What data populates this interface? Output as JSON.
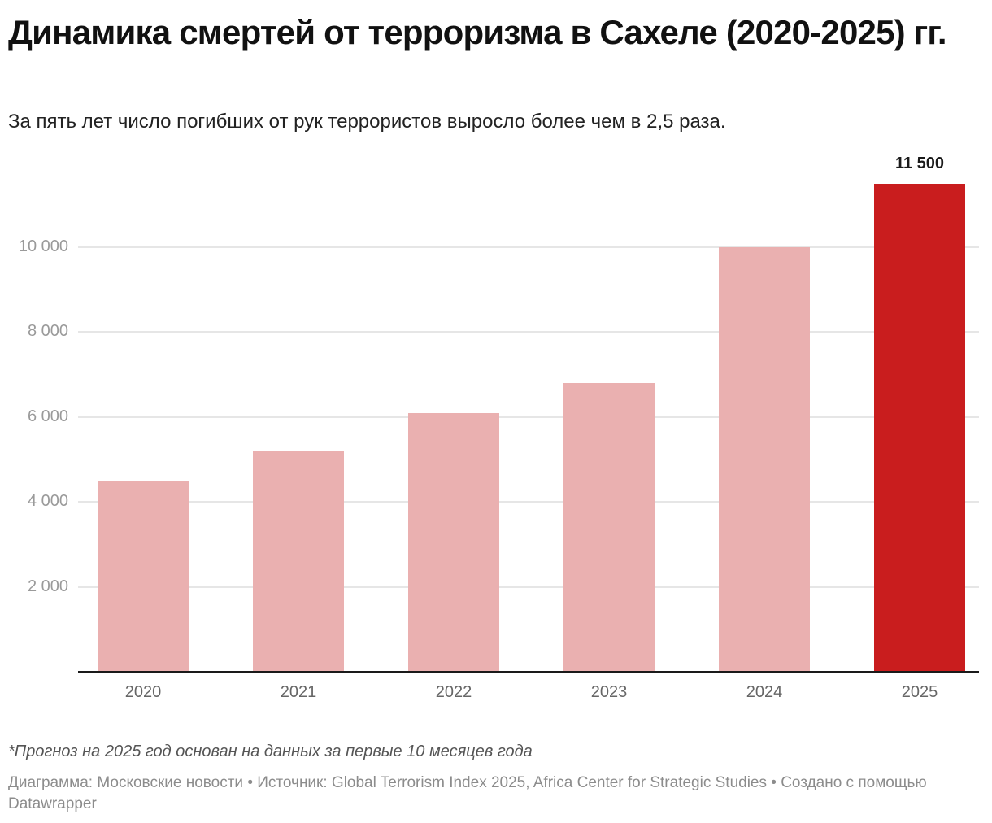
{
  "title": "Динамика смертей от терроризма в Сахеле (2020-2025) гг.",
  "subtitle": "За пять лет число погибших от рук террористов выросло более чем в 2,5 раза.",
  "note": "*Прогноз на 2025 год основан на данных за первые 10 месяцев года",
  "footer": "Диаграмма: Московские новости • Источник: Global Terrorism Index 2025, Africa Center for Strategic Studies • Создано с помощью Datawrapper",
  "colors": {
    "default_bar": "#eab0b0",
    "highlight_bar": "#c91d1e",
    "grid": "#e6e6e6",
    "axis": "#1a1a1a"
  },
  "chart_data": {
    "type": "bar",
    "title": "Динамика смертей от терроризма в Сахеле (2020-2025) гг.",
    "subtitle": "За пять лет число погибших от рук террористов выросло более чем в 2,5 раза.",
    "categories": [
      "2020",
      "2021",
      "2022",
      "2023",
      "2024",
      "2025"
    ],
    "values": [
      4500,
      5200,
      6100,
      6800,
      10000,
      11500
    ],
    "highlight": "2025",
    "data_labels": {
      "2025": "11 500"
    },
    "xlabel": "",
    "ylabel": "",
    "ylim": [
      0,
      11500
    ],
    "yticks": [
      2000,
      4000,
      6000,
      8000,
      10000
    ],
    "ytick_labels": [
      "2 000",
      "4 000",
      "6 000",
      "8 000",
      "10 000"
    ],
    "grid": true,
    "legend": "none",
    "annotations": [
      "*Прогноз на 2025 год основан на данных за первые 10 месяцев года"
    ]
  }
}
